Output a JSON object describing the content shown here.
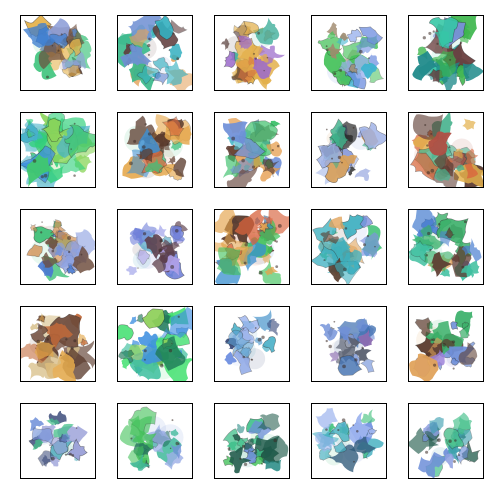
{
  "grid": {
    "rows": 5,
    "cols": 5,
    "background": "#ffffff",
    "frame_color": "#000000",
    "tiles": [
      {
        "palette": [
          "#3f7fd0",
          "#41c47e",
          "#e6b24a",
          "#6b4a3a",
          "#8fa0d8"
        ],
        "density": 0.55,
        "seed": 11
      },
      {
        "palette": [
          "#37b889",
          "#e3a25b",
          "#5f3e3e",
          "#6f8fd3",
          "#34b0c0"
        ],
        "density": 0.7,
        "seed": 23
      },
      {
        "palette": [
          "#e3b04b",
          "#d8743e",
          "#4b2f2a",
          "#4ab3a0",
          "#9b6bcb"
        ],
        "density": 0.72,
        "seed": 37
      },
      {
        "palette": [
          "#6f8fe0",
          "#3fb3d0",
          "#48c25c",
          "#a08a6e",
          "#9db4ee"
        ],
        "density": 0.62,
        "seed": 41
      },
      {
        "palette": [
          "#35c7a6",
          "#3bb54b",
          "#7a90d9",
          "#1f8a8a",
          "#6a3e3e"
        ],
        "density": 0.7,
        "seed": 53
      },
      {
        "palette": [
          "#40c86e",
          "#3f8fe0",
          "#2fd07a",
          "#45b0c8",
          "#8bd55b"
        ],
        "density": 0.85,
        "seed": 61
      },
      {
        "palette": [
          "#e5a84d",
          "#5a3a2c",
          "#40c07c",
          "#d9683c",
          "#3f8fd0"
        ],
        "density": 0.7,
        "seed": 73
      },
      {
        "palette": [
          "#4ab8c8",
          "#e59c4c",
          "#5c3a30",
          "#3bc06a",
          "#6f8fd8"
        ],
        "density": 0.72,
        "seed": 89
      },
      {
        "palette": [
          "#7f92d8",
          "#3fb08a",
          "#d8a05a",
          "#2b2b2b",
          "#9db0e6"
        ],
        "density": 0.5,
        "seed": 97
      },
      {
        "palette": [
          "#d86a3f",
          "#b04f45",
          "#e3b04b",
          "#4ab38f",
          "#5c3a30"
        ],
        "density": 0.78,
        "seed": 103
      },
      {
        "palette": [
          "#4a78d0",
          "#41c27a",
          "#d08a4a",
          "#6e4c3c",
          "#8ca0e0"
        ],
        "density": 0.6,
        "seed": 109
      },
      {
        "palette": [
          "#8f92e6",
          "#6f7fd8",
          "#b0a0e8",
          "#3c9cc0",
          "#5c3e4a"
        ],
        "density": 0.55,
        "seed": 127
      },
      {
        "palette": [
          "#41c25c",
          "#e3a34b",
          "#d8623c",
          "#3a8fd0",
          "#5a3a2c"
        ],
        "density": 0.8,
        "seed": 131
      },
      {
        "palette": [
          "#7f92e0",
          "#45c27a",
          "#e0a35a",
          "#5a4030",
          "#3cb0c0"
        ],
        "density": 0.7,
        "seed": 149
      },
      {
        "palette": [
          "#3bb06a",
          "#e09a4a",
          "#4a7fd0",
          "#5c3a30",
          "#3fc0a0"
        ],
        "density": 0.68,
        "seed": 151
      },
      {
        "palette": [
          "#e3a84b",
          "#c26a3a",
          "#5a3a2c",
          "#d8c08a",
          "#6e4a3a"
        ],
        "density": 0.65,
        "seed": 163
      },
      {
        "palette": [
          "#3fe06e",
          "#40c0a0",
          "#3f8fe0",
          "#8fd05a",
          "#1f7a5a"
        ],
        "density": 0.85,
        "seed": 173
      },
      {
        "palette": [
          "#6f8fe0",
          "#4ab0c8",
          "#9db4ee",
          "#3a4a7a",
          "#5a9ed0"
        ],
        "density": 0.38,
        "seed": 181
      },
      {
        "palette": [
          "#6f8fd8",
          "#5a6070",
          "#9aa0b0",
          "#3f6fb0",
          "#8a6ab0"
        ],
        "density": 0.42,
        "seed": 191
      },
      {
        "palette": [
          "#9a7fd8",
          "#e0a35a",
          "#5a3a2c",
          "#6f8fd8",
          "#3bb06a"
        ],
        "density": 0.62,
        "seed": 197
      },
      {
        "palette": [
          "#6f8fd8",
          "#45c08a",
          "#9aa0d8",
          "#3a4a7a",
          "#5ab0c0"
        ],
        "density": 0.4,
        "seed": 211
      },
      {
        "palette": [
          "#3fb89a",
          "#45c25c",
          "#6f8fd8",
          "#1f6a5a",
          "#9db0e6"
        ],
        "density": 0.55,
        "seed": 223
      },
      {
        "palette": [
          "#3fc08a",
          "#2f8f8a",
          "#6f8fd8",
          "#45c25c",
          "#1f5a4a"
        ],
        "density": 0.5,
        "seed": 227
      },
      {
        "palette": [
          "#6f8fe0",
          "#3fc07a",
          "#9db4ee",
          "#2f5a7a",
          "#45b0c0"
        ],
        "density": 0.48,
        "seed": 233
      },
      {
        "palette": [
          "#45c08a",
          "#6f8fd8",
          "#3f9fb0",
          "#1f5a4a",
          "#8fa0e0"
        ],
        "density": 0.52,
        "seed": 239
      }
    ]
  }
}
